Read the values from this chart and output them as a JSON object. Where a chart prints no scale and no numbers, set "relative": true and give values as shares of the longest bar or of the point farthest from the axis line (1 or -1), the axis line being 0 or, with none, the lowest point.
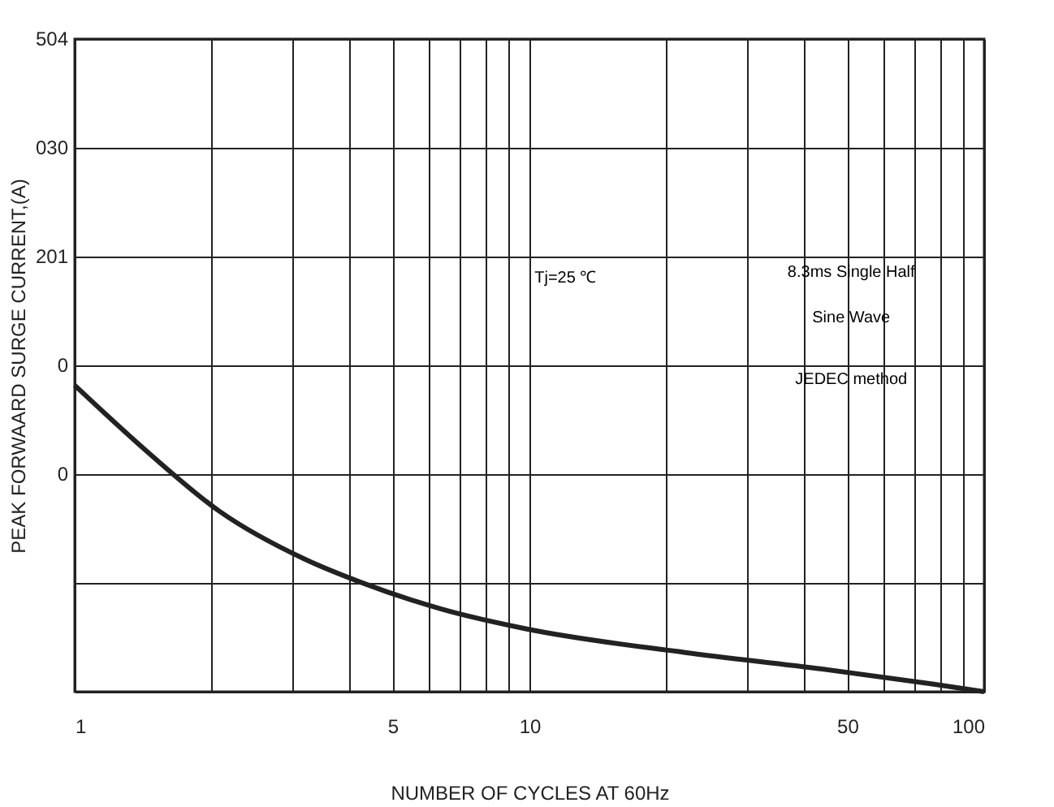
{
  "chart_data": {
    "type": "line",
    "xlabel": "NUMBER OF CYCLES AT 60Hz",
    "ylabel": "PEAK FORWAARD SURGE CURRENT,(A)",
    "relative": true,
    "x": [
      1,
      1.46,
      2.08,
      3.2,
      4.24,
      6.4,
      9.77,
      22,
      44,
      77,
      100
    ],
    "series": [
      {
        "color": "#222222",
        "values": [
          1,
          0.777,
          0.589,
          0.433,
          0.358,
          0.27,
          0.206,
          0.128,
          0.074,
          0.025,
          0
        ]
      }
    ],
    "log": "x",
    "xlim": [
      1,
      100
    ],
    "xticks": [
      1,
      5,
      10,
      50,
      100
    ],
    "grid": true,
    "marker": "none",
    "line_style": "solid",
    "annotations": [
      "504",
      "030",
      "201",
      "0",
      "0",
      "Tj=25 ℃",
      "8.3ms Single Half",
      "Sine Wave",
      "JEDEC method"
    ]
  }
}
